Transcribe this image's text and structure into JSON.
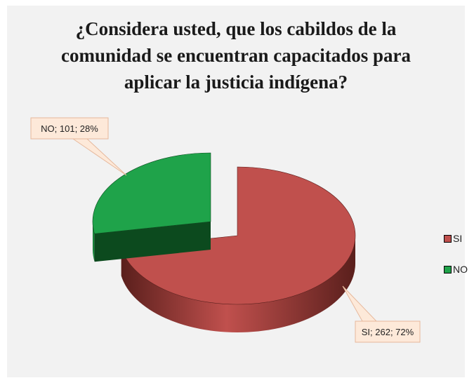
{
  "chart_data": {
    "type": "pie",
    "title": "¿Considera usted, que los cabildos de la\ncomunidad se encuentran capacitados para\naplicar la justicia indígena?",
    "slices": [
      {
        "label": "SI",
        "value": 262,
        "percent": 72,
        "data_label": "SI; 262; 72%",
        "color": "#c0504d",
        "dark_color": "#5a1f1c"
      },
      {
        "label": "NO",
        "value": 101,
        "percent": 28,
        "data_label": "NO; 101; 28%",
        "color": "#1fa34a",
        "dark_color": "#0c4a1e"
      }
    ],
    "legend": {
      "position": "right",
      "entries": [
        "SI",
        "NO"
      ]
    },
    "style": "3d-exploded-pie"
  }
}
